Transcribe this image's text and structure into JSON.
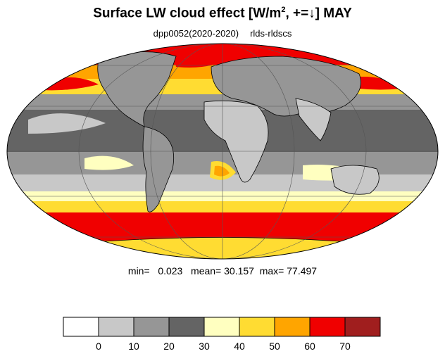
{
  "header": {
    "title_prefix": "Surface LW cloud effect [W/m",
    "title_sup": "2",
    "title_suffix": ", +=↓]  MAY",
    "subtitle_left": "dpp0052(2020-2020)",
    "subtitle_right": "rlds-rldscs"
  },
  "stats": {
    "min_label": "min=",
    "min_value": "0.023",
    "mean_label": "mean=",
    "mean_value": "30.157",
    "max_label": "max=",
    "max_value": "77.497"
  },
  "colorbar": {
    "colors": [
      "#ffffff",
      "#c8c8c8",
      "#969696",
      "#646464",
      "#ffffc0",
      "#ffdc32",
      "#ffa500",
      "#f00000",
      "#a01e1e"
    ],
    "ticks": [
      "0",
      "10",
      "20",
      "30",
      "40",
      "50",
      "60",
      "70"
    ]
  },
  "map": {
    "projection": "mollweide",
    "ocean_palette": [
      "#ffffc0",
      "#ffdc32",
      "#ffa500",
      "#f00000"
    ],
    "land_palette": [
      "#c8c8c8",
      "#969696",
      "#646464"
    ],
    "gridline_color": "#555555",
    "coastline_color": "#000000"
  }
}
